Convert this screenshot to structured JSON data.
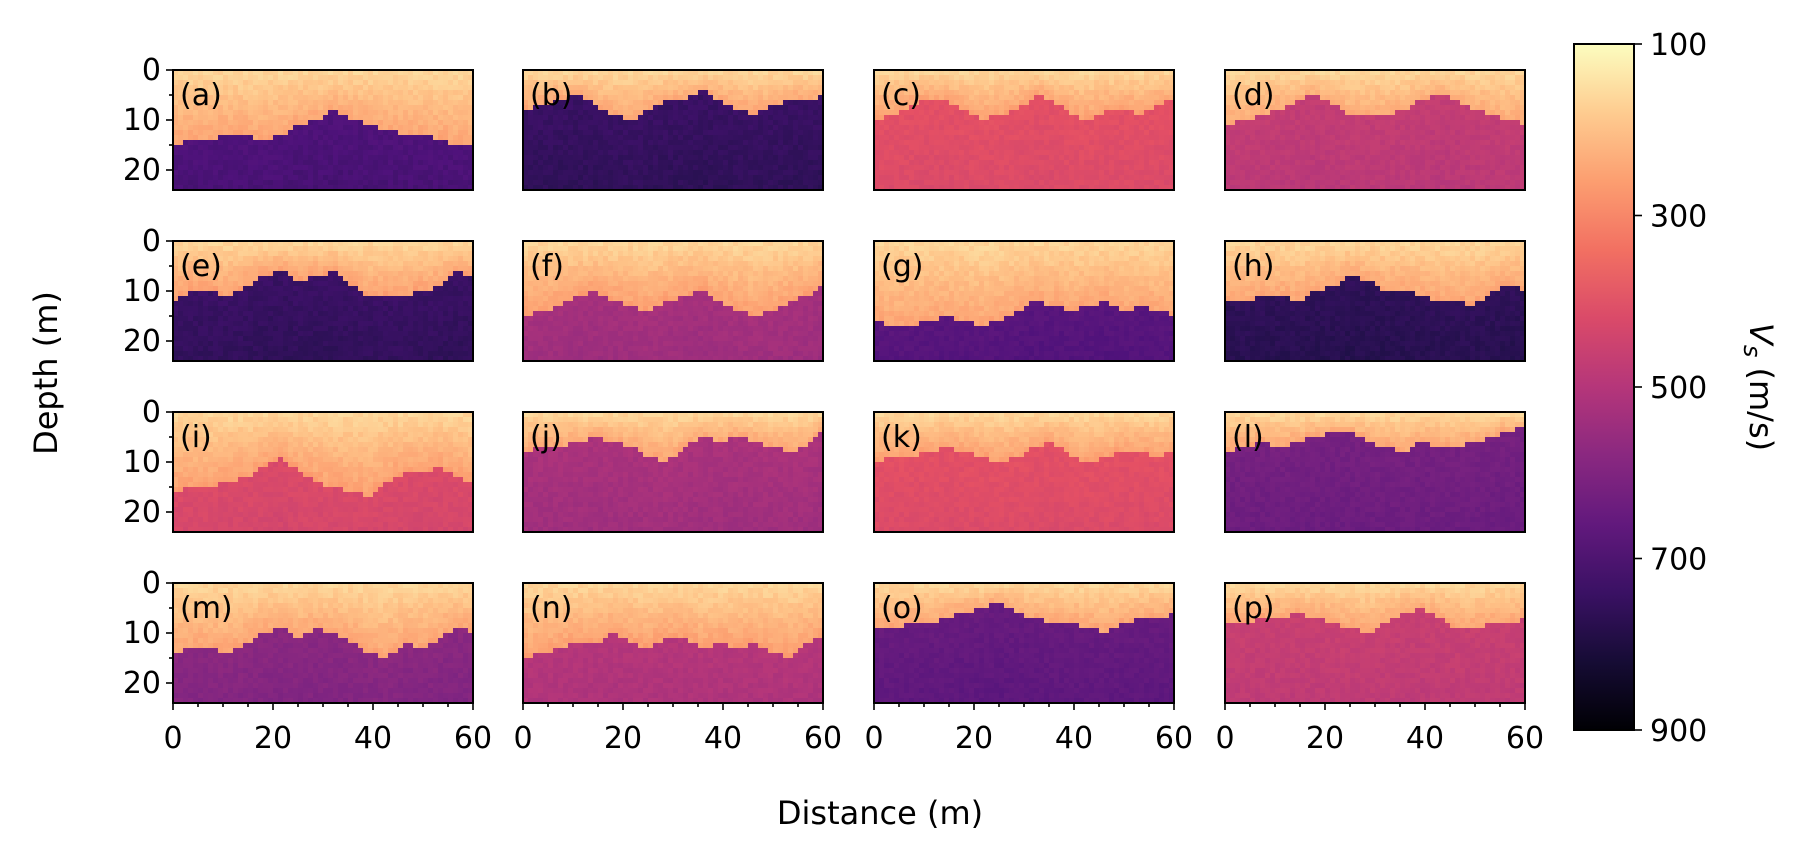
{
  "chart_data": {
    "type": "heatmap",
    "xlabel": "Distance (m)",
    "ylabel": "Depth (m)",
    "colorbar_label": "Vs (m/s)",
    "colorbar_prefix": "V",
    "colorbar_sub": "s",
    "colorbar_units": " (m/s)",
    "colormap": "magma_r",
    "xlim": [
      0,
      60
    ],
    "ylim": [
      0,
      24
    ],
    "x_ticks": [
      0,
      20,
      40,
      60
    ],
    "x_tick_labels": [
      "0",
      "20",
      "40",
      "60"
    ],
    "y_ticks": [
      0,
      10,
      20
    ],
    "y_tick_labels": [
      "0",
      "10",
      "20"
    ],
    "clim": [
      100,
      900
    ],
    "colorbar_ticks": [
      100,
      300,
      500,
      700,
      900
    ],
    "colorbar_tick_labels": [
      "100",
      "300",
      "500",
      "700",
      "900"
    ],
    "panels": [
      {
        "label": "(a)",
        "top_vs": 250,
        "bottom_vs": 700,
        "interface_depth": [
          15,
          14,
          14,
          13,
          13,
          14,
          13,
          11,
          10,
          8,
          10,
          11,
          12,
          13,
          13,
          14,
          15,
          15
        ]
      },
      {
        "label": "(b)",
        "top_vs": 250,
        "bottom_vs": 740,
        "interface_depth": [
          8,
          7,
          6,
          5,
          7,
          9,
          10,
          8,
          6,
          6,
          4,
          6,
          8,
          9,
          7,
          6,
          6,
          5
        ]
      },
      {
        "label": "(c)",
        "top_vs": 260,
        "bottom_vs": 400,
        "interface_depth": [
          10,
          9,
          7,
          6,
          6,
          8,
          10,
          9,
          8,
          5,
          6,
          9,
          10,
          8,
          8,
          9,
          7,
          5
        ]
      },
      {
        "label": "(d)",
        "top_vs": 240,
        "bottom_vs": 470,
        "interface_depth": [
          11,
          10,
          9,
          8,
          6,
          5,
          7,
          9,
          9,
          9,
          8,
          6,
          5,
          6,
          8,
          9,
          10,
          11
        ]
      },
      {
        "label": "(e)",
        "top_vs": 260,
        "bottom_vs": 740,
        "interface_depth": [
          12,
          10,
          10,
          11,
          9,
          7,
          6,
          8,
          7,
          6,
          9,
          11,
          11,
          11,
          10,
          9,
          6,
          8
        ]
      },
      {
        "label": "(f)",
        "top_vs": 260,
        "bottom_vs": 530,
        "interface_depth": [
          15,
          14,
          13,
          11,
          10,
          12,
          13,
          14,
          12,
          11,
          10,
          12,
          14,
          15,
          14,
          12,
          11,
          8
        ]
      },
      {
        "label": "(g)",
        "top_vs": 250,
        "bottom_vs": 680,
        "interface_depth": [
          16,
          17,
          17,
          16,
          15,
          16,
          17,
          16,
          14,
          12,
          13,
          14,
          13,
          12,
          14,
          13,
          14,
          15
        ]
      },
      {
        "label": "(h)",
        "top_vs": 250,
        "bottom_vs": 760,
        "interface_depth": [
          12,
          12,
          11,
          11,
          12,
          10,
          9,
          7,
          8,
          10,
          10,
          11,
          12,
          12,
          13,
          10,
          9,
          10
        ]
      },
      {
        "label": "(i)",
        "top_vs": 260,
        "bottom_vs": 420,
        "interface_depth": [
          16,
          15,
          15,
          14,
          13,
          11,
          9,
          12,
          14,
          15,
          16,
          17,
          14,
          12,
          12,
          11,
          13,
          15
        ]
      },
      {
        "label": "(j)",
        "top_vs": 250,
        "bottom_vs": 520,
        "interface_depth": [
          8,
          7,
          7,
          6,
          5,
          6,
          7,
          9,
          10,
          7,
          5,
          6,
          5,
          6,
          7,
          8,
          7,
          3
        ]
      },
      {
        "label": "(k)",
        "top_vs": 260,
        "bottom_vs": 400,
        "interface_depth": [
          10,
          9,
          9,
          8,
          7,
          8,
          9,
          10,
          9,
          7,
          6,
          9,
          10,
          9,
          8,
          8,
          9,
          7
        ]
      },
      {
        "label": "(l)",
        "top_vs": 250,
        "bottom_vs": 620,
        "interface_depth": [
          8,
          7,
          6,
          7,
          6,
          5,
          4,
          4,
          6,
          7,
          8,
          6,
          7,
          7,
          6,
          5,
          4,
          2
        ]
      },
      {
        "label": "(m)",
        "top_vs": 250,
        "bottom_vs": 580,
        "interface_depth": [
          14,
          13,
          13,
          14,
          12,
          10,
          9,
          11,
          9,
          10,
          12,
          14,
          15,
          12,
          13,
          11,
          9,
          10
        ]
      },
      {
        "label": "(n)",
        "top_vs": 260,
        "bottom_vs": 500,
        "interface_depth": [
          15,
          14,
          13,
          12,
          12,
          10,
          12,
          13,
          11,
          11,
          13,
          12,
          13,
          12,
          14,
          15,
          12,
          10
        ]
      },
      {
        "label": "(o)",
        "top_vs": 250,
        "bottom_vs": 650,
        "interface_depth": [
          9,
          9,
          8,
          8,
          7,
          6,
          5,
          4,
          6,
          7,
          8,
          8,
          9,
          10,
          8,
          7,
          7,
          6
        ]
      },
      {
        "label": "(p)",
        "top_vs": 250,
        "bottom_vs": 460,
        "interface_depth": [
          8,
          8,
          7,
          7,
          6,
          7,
          8,
          9,
          10,
          8,
          6,
          5,
          7,
          9,
          9,
          8,
          8,
          7
        ]
      }
    ]
  }
}
